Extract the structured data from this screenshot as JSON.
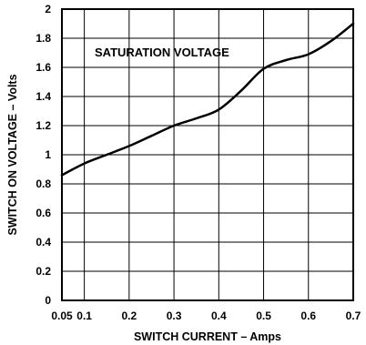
{
  "chart_data": {
    "type": "line",
    "title": "",
    "annotation": "SATURATION VOLTAGE",
    "xlabel": "SWITCH CURRENT – Amps",
    "ylabel": "SWITCH ON VOLTAGE – Volts",
    "xlim": [
      0.05,
      0.7
    ],
    "ylim": [
      0,
      2
    ],
    "xticks": [
      "0.05",
      "0.1",
      "0.2",
      "0.3",
      "0.4",
      "0.5",
      "0.6",
      "0.7"
    ],
    "xtick_values": [
      0.05,
      0.1,
      0.2,
      0.3,
      0.4,
      0.5,
      0.6,
      0.7
    ],
    "yticks": [
      "0",
      "0.2",
      "0.4",
      "0.6",
      "0.8",
      "1",
      "1.2",
      "1.4",
      "1.6",
      "1.8",
      "2"
    ],
    "ytick_values": [
      0,
      0.2,
      0.4,
      0.6,
      0.8,
      1,
      1.2,
      1.4,
      1.6,
      1.8,
      2
    ],
    "grid": true,
    "line_color": "#000000",
    "series": [
      {
        "x": [
          0.05,
          0.1,
          0.15,
          0.2,
          0.25,
          0.3,
          0.35,
          0.4,
          0.45,
          0.5,
          0.55,
          0.6,
          0.65,
          0.7
        ],
        "values": [
          0.86,
          0.94,
          1.0,
          1.06,
          1.13,
          1.2,
          1.25,
          1.31,
          1.44,
          1.59,
          1.65,
          1.69,
          1.78,
          1.9
        ]
      }
    ]
  }
}
